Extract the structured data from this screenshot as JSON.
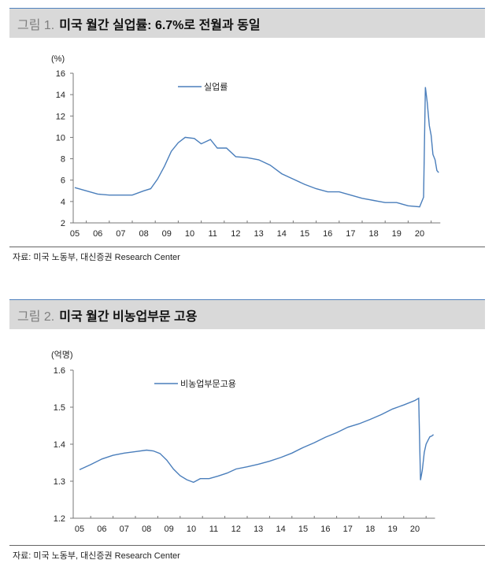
{
  "chart_data": [
    {
      "type": "line",
      "figure_label": "그림 1.",
      "title": "미국 월간 실업률: 6.7%로 전월과 동일",
      "unit": "(%)",
      "ylim": [
        2,
        16
      ],
      "yticks": [
        "2",
        "4",
        "6",
        "8",
        "10",
        "12",
        "14",
        "16"
      ],
      "xticks": [
        "05",
        "06",
        "07",
        "08",
        "09",
        "10",
        "11",
        "12",
        "13",
        "14",
        "15",
        "16",
        "17",
        "18",
        "19",
        "20"
      ],
      "series": [
        {
          "name": "실업률",
          "color": "#4a7ebb",
          "x": [
            2005,
            2005.5,
            2006,
            2006.5,
            2007,
            2007.5,
            2008,
            2008.3,
            2008.6,
            2008.9,
            2009.2,
            2009.5,
            2009.8,
            2010.2,
            2010.5,
            2010.9,
            2011.2,
            2011.6,
            2012,
            2012.5,
            2013,
            2013.5,
            2014,
            2014.5,
            2015,
            2015.5,
            2016,
            2016.5,
            2017,
            2017.5,
            2018,
            2018.5,
            2019,
            2019.5,
            2020,
            2020.17,
            2020.25,
            2020.33,
            2020.42,
            2020.5,
            2020.58,
            2020.67,
            2020.75,
            2020.83
          ],
          "y": [
            5.3,
            5.0,
            4.7,
            4.6,
            4.6,
            4.6,
            5.0,
            5.2,
            6.1,
            7.3,
            8.7,
            9.5,
            10.0,
            9.9,
            9.4,
            9.8,
            9.0,
            9.0,
            8.2,
            8.1,
            7.9,
            7.4,
            6.6,
            6.1,
            5.6,
            5.2,
            4.9,
            4.9,
            4.6,
            4.3,
            4.1,
            3.9,
            3.9,
            3.6,
            3.5,
            4.4,
            14.7,
            13.3,
            11.1,
            10.2,
            8.4,
            7.9,
            6.9,
            6.7
          ]
        }
      ],
      "source": "자료: 미국 노동부, 대신증권 Research Center"
    },
    {
      "type": "line",
      "figure_label": "그림 2.",
      "title": "미국 월간 비농업부문 고용",
      "unit": "(억명)",
      "ylim": [
        1.2,
        1.6
      ],
      "yticks": [
        "1.2",
        "1.3",
        "1.4",
        "1.5",
        "1.6"
      ],
      "xticks": [
        "05",
        "06",
        "07",
        "08",
        "09",
        "10",
        "11",
        "12",
        "13",
        "14",
        "15",
        "16",
        "17",
        "18",
        "19",
        "20"
      ],
      "series": [
        {
          "name": "비농업부문고용",
          "color": "#4a7ebb",
          "x": [
            2005,
            2005.5,
            2006,
            2006.5,
            2007,
            2007.5,
            2008,
            2008.3,
            2008.6,
            2008.9,
            2009.2,
            2009.5,
            2009.8,
            2010.1,
            2010.4,
            2010.8,
            2011.2,
            2011.6,
            2012,
            2012.5,
            2013,
            2013.5,
            2014,
            2014.5,
            2015,
            2015.5,
            2016,
            2016.5,
            2017,
            2017.5,
            2018,
            2018.5,
            2019,
            2019.5,
            2020,
            2020.17,
            2020.25,
            2020.33,
            2020.42,
            2020.5,
            2020.58,
            2020.67,
            2020.75,
            2020.83
          ],
          "y": [
            1.331,
            1.345,
            1.36,
            1.37,
            1.376,
            1.38,
            1.384,
            1.382,
            1.375,
            1.357,
            1.333,
            1.315,
            1.304,
            1.297,
            1.307,
            1.307,
            1.314,
            1.322,
            1.333,
            1.339,
            1.346,
            1.354,
            1.364,
            1.376,
            1.391,
            1.404,
            1.419,
            1.431,
            1.446,
            1.455,
            1.467,
            1.48,
            1.495,
            1.506,
            1.518,
            1.524,
            1.303,
            1.33,
            1.378,
            1.4,
            1.41,
            1.42,
            1.422,
            1.426
          ]
        }
      ],
      "source": "자료: 미국 노동부, 대신증권 Research Center"
    }
  ]
}
